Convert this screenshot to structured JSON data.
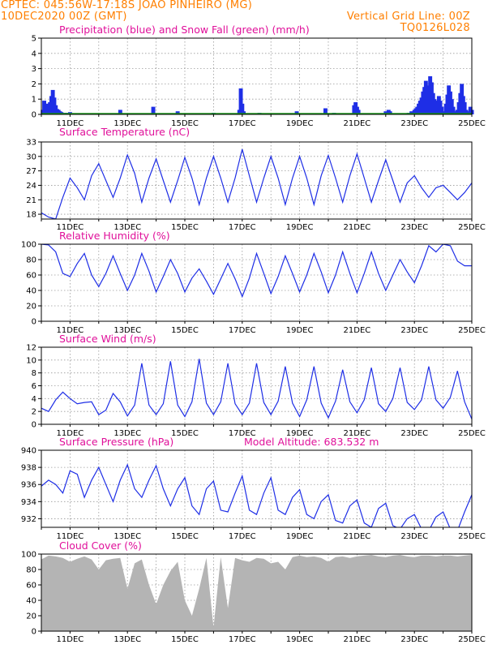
{
  "header": {
    "line1": "CPTEC:   045:56W-17:18S   JOAO PINHEIRO (MG)",
    "line2_left": "10DEC2020 00Z (GMT)",
    "line2_right": "Vertical Grid Line: 00Z",
    "line3_right": "TQ0126L028"
  },
  "colors": {
    "header": "#ff7f00",
    "title": "#e0109a",
    "series": "#1e2ee6",
    "snow": "#1a9a1a",
    "cloud": "#b4b4b4"
  },
  "x_axis": {
    "labels": [
      "11DEC",
      "13DEC",
      "15DEC",
      "17DEC",
      "19DEC",
      "21DEC",
      "23DEC",
      "25DEC"
    ]
  },
  "panels": {
    "precip": {
      "title": "Precipitation (blue) and Snow Fall (green) (mm/h)"
    },
    "temp": {
      "title": "Surface Temperature (nC)"
    },
    "rh": {
      "title": "Relative Humidity (%)"
    },
    "wind": {
      "title": "Surface Wind (m/s)"
    },
    "pres": {
      "title": "Surface Pressure (hPa)",
      "altitude": "Model Altitude: 683.532 m"
    },
    "cloud": {
      "title": "Cloud Cover (%)"
    }
  },
  "chart_data": [
    {
      "type": "bar",
      "title": "Precipitation (blue) and Snow Fall (green) (mm/h)",
      "x_unit": "days since 10DEC2020 00Z",
      "ylim": [
        0,
        5
      ],
      "yticks": [
        0,
        1,
        2,
        3,
        4,
        5
      ],
      "series": [
        {
          "name": "Precipitation",
          "points": [
            [
              0.05,
              0.3
            ],
            [
              0.1,
              0.9
            ],
            [
              0.15,
              0.6
            ],
            [
              0.2,
              0.7
            ],
            [
              0.25,
              0.5
            ],
            [
              0.3,
              0.8
            ],
            [
              0.35,
              1.2
            ],
            [
              0.4,
              1.6
            ],
            [
              0.45,
              1.1
            ],
            [
              0.5,
              0.6
            ],
            [
              0.55,
              0.35
            ],
            [
              0.6,
              0.3
            ],
            [
              0.65,
              0.2
            ],
            [
              0.7,
              0.15
            ],
            [
              0.8,
              0.1
            ],
            [
              0.9,
              0.1
            ],
            [
              1.0,
              0.15
            ],
            [
              2.75,
              0.3
            ],
            [
              3.9,
              0.5
            ],
            [
              4.75,
              0.2
            ],
            [
              6.0,
              0.1
            ],
            [
              6.9,
              0.3
            ],
            [
              6.95,
              1.7
            ],
            [
              7.0,
              0.7
            ],
            [
              7.05,
              0.2
            ],
            [
              7.6,
              0.1
            ],
            [
              8.9,
              0.2
            ],
            [
              9.9,
              0.4
            ],
            [
              10.2,
              0.1
            ],
            [
              10.9,
              0.6
            ],
            [
              10.95,
              0.8
            ],
            [
              11.0,
              0.5
            ],
            [
              11.05,
              0.3
            ],
            [
              12.0,
              0.2
            ],
            [
              12.1,
              0.3
            ],
            [
              12.15,
              0.2
            ],
            [
              12.8,
              0.1
            ],
            [
              12.9,
              0.2
            ],
            [
              13.0,
              0.3
            ],
            [
              13.05,
              0.4
            ],
            [
              13.1,
              0.5
            ],
            [
              13.15,
              0.7
            ],
            [
              13.2,
              0.9
            ],
            [
              13.25,
              1.1
            ],
            [
              13.3,
              1.5
            ],
            [
              13.35,
              1.8
            ],
            [
              13.4,
              2.2
            ],
            [
              13.45,
              1.9
            ],
            [
              13.5,
              1.3
            ],
            [
              13.55,
              2.5
            ],
            [
              13.6,
              2.1
            ],
            [
              13.65,
              1.4
            ],
            [
              13.7,
              1.0
            ],
            [
              13.75,
              0.6
            ],
            [
              13.8,
              0.9
            ],
            [
              13.85,
              1.2
            ],
            [
              13.9,
              0.9
            ],
            [
              13.95,
              0.5
            ],
            [
              14.0,
              0.2
            ],
            [
              14.1,
              0.7
            ],
            [
              14.15,
              1.3
            ],
            [
              14.2,
              1.9
            ],
            [
              14.25,
              1.5
            ],
            [
              14.3,
              1.0
            ],
            [
              14.35,
              0.5
            ],
            [
              14.4,
              0.2
            ],
            [
              14.5,
              0.3
            ],
            [
              14.55,
              0.8
            ],
            [
              14.6,
              1.4
            ],
            [
              14.65,
              2.0
            ],
            [
              14.7,
              1.2
            ],
            [
              14.75,
              0.8
            ],
            [
              14.8,
              0.3
            ],
            [
              14.9,
              0.2
            ],
            [
              14.95,
              0.5
            ],
            [
              15.0,
              0.3
            ]
          ]
        },
        {
          "name": "Snow Fall",
          "points": []
        }
      ]
    },
    {
      "type": "line",
      "title": "Surface Temperature (nC)",
      "ylim": [
        17,
        33
      ],
      "yticks": [
        18,
        21,
        24,
        27,
        30,
        33
      ],
      "x": [
        0,
        0.25,
        0.5,
        0.75,
        1,
        1.25,
        1.5,
        1.75,
        2,
        2.25,
        2.5,
        2.75,
        3,
        3.25,
        3.5,
        3.75,
        4,
        4.25,
        4.5,
        4.75,
        5,
        5.25,
        5.5,
        5.75,
        6,
        6.25,
        6.5,
        6.75,
        7,
        7.25,
        7.5,
        7.75,
        8,
        8.25,
        8.5,
        8.75,
        9,
        9.25,
        9.5,
        9.75,
        10,
        10.25,
        10.5,
        10.75,
        11,
        11.25,
        11.5,
        11.75,
        12,
        12.25,
        12.5,
        12.75,
        13,
        13.25,
        13.5,
        13.75,
        14,
        14.25,
        14.5,
        14.75,
        15
      ],
      "series": [
        {
          "values": [
            18.3,
            17.4,
            17,
            21.5,
            25.5,
            23.5,
            21,
            26,
            28.5,
            25,
            21.5,
            25.5,
            30.3,
            26.5,
            20.5,
            25.5,
            29.5,
            25,
            20.5,
            25,
            29.8,
            25.5,
            20,
            25.5,
            30,
            25.5,
            20.5,
            25.5,
            31.5,
            26,
            20.5,
            25.5,
            30,
            25.5,
            20,
            25.5,
            30,
            25.5,
            20,
            26,
            30.2,
            25.5,
            20.5,
            26,
            30.5,
            25.5,
            20.5,
            25,
            29.3,
            25,
            20.5,
            24.5,
            26,
            23.5,
            21.5,
            23.5,
            24,
            22.5,
            21,
            22.5,
            24.5
          ]
        }
      ]
    },
    {
      "type": "line",
      "title": "Relative Humidity (%)",
      "ylim": [
        0,
        100
      ],
      "yticks": [
        0,
        20,
        40,
        60,
        80,
        100
      ],
      "x": [
        0,
        0.25,
        0.5,
        0.75,
        1,
        1.25,
        1.5,
        1.75,
        2,
        2.25,
        2.5,
        2.75,
        3,
        3.25,
        3.5,
        3.75,
        4,
        4.25,
        4.5,
        4.75,
        5,
        5.25,
        5.5,
        5.75,
        6,
        6.25,
        6.5,
        6.75,
        7,
        7.25,
        7.5,
        7.75,
        8,
        8.25,
        8.5,
        8.75,
        9,
        9.25,
        9.5,
        9.75,
        10,
        10.25,
        10.5,
        10.75,
        11,
        11.25,
        11.5,
        11.75,
        12,
        12.25,
        12.5,
        12.75,
        13,
        13.25,
        13.5,
        13.75,
        14,
        14.25,
        14.5,
        14.75,
        15
      ],
      "series": [
        {
          "values": [
            100,
            99,
            90,
            62,
            58,
            75,
            88,
            60,
            45,
            62,
            85,
            62,
            40,
            60,
            88,
            65,
            38,
            58,
            80,
            62,
            38,
            56,
            68,
            52,
            35,
            55,
            75,
            55,
            32,
            56,
            88,
            62,
            36,
            58,
            85,
            62,
            38,
            60,
            88,
            64,
            37,
            60,
            90,
            62,
            37,
            62,
            90,
            62,
            40,
            60,
            80,
            64,
            50,
            72,
            98,
            90,
            100,
            98,
            78,
            72,
            72
          ]
        }
      ]
    },
    {
      "type": "line",
      "title": "Surface Wind (m/s)",
      "ylim": [
        0,
        12
      ],
      "yticks": [
        0,
        2,
        4,
        6,
        8,
        10,
        12
      ],
      "x": [
        0,
        0.25,
        0.5,
        0.75,
        1,
        1.25,
        1.5,
        1.75,
        2,
        2.25,
        2.5,
        2.75,
        3,
        3.25,
        3.5,
        3.75,
        4,
        4.25,
        4.5,
        4.75,
        5,
        5.25,
        5.5,
        5.75,
        6,
        6.25,
        6.5,
        6.75,
        7,
        7.25,
        7.5,
        7.75,
        8,
        8.25,
        8.5,
        8.75,
        9,
        9.25,
        9.5,
        9.75,
        10,
        10.25,
        10.5,
        10.75,
        11,
        11.25,
        11.5,
        11.75,
        12,
        12.25,
        12.5,
        12.75,
        13,
        13.25,
        13.5,
        13.75,
        14,
        14.25,
        14.5,
        14.75,
        15
      ],
      "series": [
        {
          "values": [
            2.5,
            2,
            3.8,
            5,
            4,
            3.2,
            3.4,
            3.5,
            1.5,
            2.2,
            4.8,
            3.5,
            1.3,
            3,
            9.5,
            3,
            1.5,
            3.2,
            9.8,
            3,
            1.2,
            3.5,
            10.2,
            3.3,
            1.5,
            3.5,
            9.5,
            3.2,
            1.5,
            3.3,
            9.5,
            3.4,
            1.5,
            3.6,
            9,
            3.3,
            1.2,
            3.8,
            9,
            3.3,
            1,
            3.6,
            8.5,
            3.5,
            1.8,
            3.8,
            8.8,
            3.2,
            2,
            4,
            8.8,
            3.4,
            2.3,
            3.8,
            9,
            3.8,
            2.5,
            4.2,
            8.3,
            3.5,
            0.8
          ]
        }
      ]
    },
    {
      "type": "line",
      "title": "Surface Pressure (hPa)",
      "ylim": [
        931,
        940
      ],
      "yticks": [
        932,
        934,
        936,
        938,
        940
      ],
      "x": [
        0,
        0.25,
        0.5,
        0.75,
        1,
        1.25,
        1.5,
        1.75,
        2,
        2.25,
        2.5,
        2.75,
        3,
        3.25,
        3.5,
        3.75,
        4,
        4.25,
        4.5,
        4.75,
        5,
        5.25,
        5.5,
        5.75,
        6,
        6.25,
        6.5,
        6.75,
        7,
        7.25,
        7.5,
        7.75,
        8,
        8.25,
        8.5,
        8.75,
        9,
        9.25,
        9.5,
        9.75,
        10,
        10.25,
        10.5,
        10.75,
        11,
        11.25,
        11.5,
        11.75,
        12,
        12.25,
        12.5,
        12.75,
        13,
        13.25,
        13.5,
        13.75,
        14,
        14.25,
        14.5,
        14.75,
        15
      ],
      "series": [
        {
          "values": [
            935.8,
            936.5,
            936,
            935,
            937.6,
            937.2,
            934.5,
            936.5,
            938,
            936,
            934,
            936.5,
            938.3,
            935.5,
            934.5,
            936.5,
            938.2,
            935.5,
            933.5,
            935.5,
            936.8,
            933.5,
            932.5,
            935.5,
            936.4,
            933,
            932.8,
            935,
            937,
            933,
            932.5,
            935,
            936.8,
            933,
            932.5,
            934.5,
            935.4,
            932.5,
            932,
            934,
            934.8,
            931.8,
            931.5,
            933.5,
            934.2,
            931.5,
            931,
            933.2,
            933.8,
            931.2,
            930.8,
            932,
            932.5,
            930.8,
            930.6,
            932.2,
            932.8,
            930.8,
            930.6,
            932.8,
            934.8
          ]
        }
      ]
    },
    {
      "type": "area",
      "title": "Cloud Cover (%)",
      "ylim": [
        0,
        100
      ],
      "yticks": [
        0,
        20,
        40,
        60,
        80,
        100
      ],
      "x": [
        0,
        0.25,
        0.5,
        0.75,
        1,
        1.25,
        1.5,
        1.75,
        2,
        2.25,
        2.5,
        2.75,
        3,
        3.25,
        3.5,
        3.75,
        4,
        4.25,
        4.5,
        4.75,
        5,
        5.25,
        5.5,
        5.75,
        6,
        6.25,
        6.5,
        6.75,
        7,
        7.25,
        7.5,
        7.75,
        8,
        8.25,
        8.5,
        8.75,
        9,
        9.25,
        9.5,
        9.75,
        10,
        10.25,
        10.5,
        10.75,
        11,
        11.25,
        11.5,
        11.75,
        12,
        12.25,
        12.5,
        12.75,
        13,
        13.25,
        13.5,
        13.75,
        14,
        14.25,
        14.5,
        14.75,
        15
      ],
      "series": [
        {
          "values": [
            93,
            98,
            97,
            95,
            90,
            94,
            97,
            93,
            80,
            92,
            94,
            95,
            55,
            88,
            93,
            60,
            35,
            60,
            78,
            90,
            40,
            20,
            55,
            95,
            5,
            96,
            30,
            95,
            92,
            90,
            95,
            94,
            88,
            90,
            80,
            96,
            98,
            96,
            97,
            95,
            90,
            96,
            97,
            95,
            97,
            98,
            99,
            97,
            96,
            98,
            99,
            97,
            96,
            98,
            98,
            97,
            98,
            98,
            97,
            98,
            99
          ]
        }
      ]
    }
  ]
}
